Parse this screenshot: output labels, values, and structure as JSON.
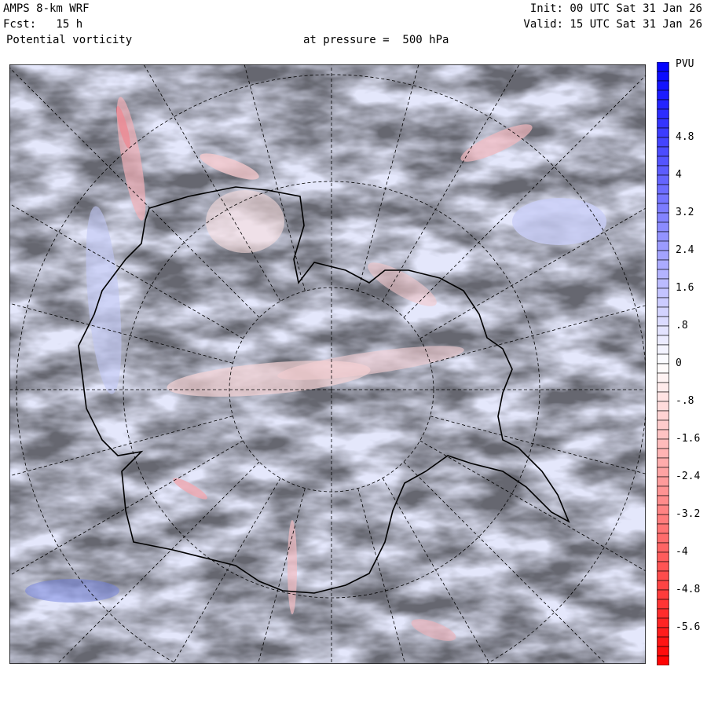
{
  "header": {
    "model": "AMPS 8-km WRF",
    "forecast": "Fcst:   15 h",
    "field": "Potential vorticity",
    "level": "at pressure =  500 hPa",
    "init": "Init: 00 UTC Sat 31 Jan 26",
    "valid": "Valid: 15 UTC Sat 31 Jan 26"
  },
  "colorbar": {
    "unit": "PVU",
    "labels": [
      "4.8",
      "4",
      "3.2",
      "2.4",
      "1.6",
      ".8",
      "0",
      "-.8",
      "-1.6",
      "-2.4",
      "-3.2",
      "-4",
      "-4.8",
      "-5.6"
    ],
    "max_color": "#0000ff",
    "mid_color": "#ffffff",
    "min_color": "#ff0000",
    "range": [
      -6.4,
      6.4
    ],
    "step": 0.2
  },
  "map": {
    "background": "#e4e7fb",
    "positive_anomaly": "#f4c8cc",
    "negative_anomaly": "#c8cdf6"
  }
}
